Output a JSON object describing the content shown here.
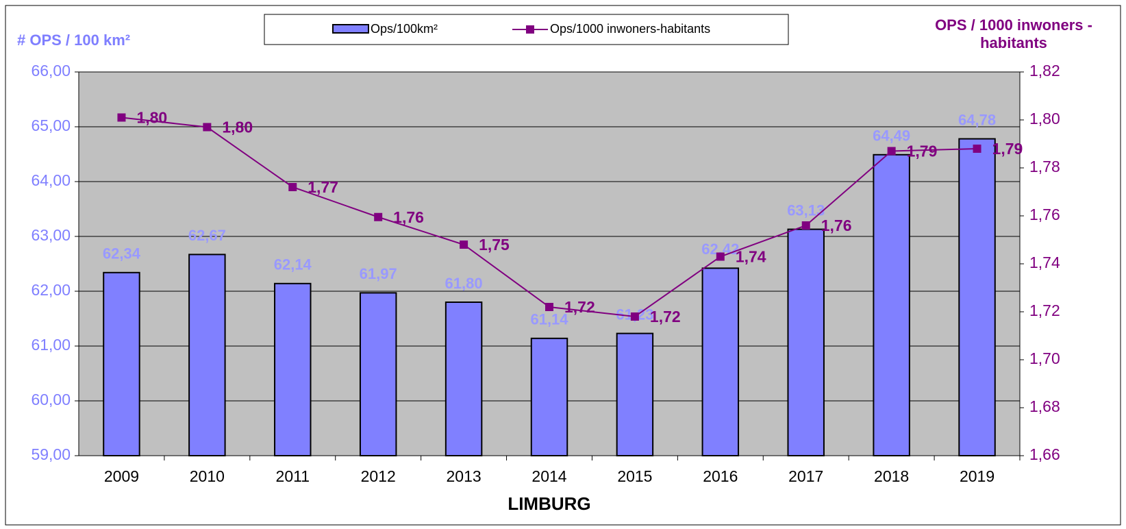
{
  "chart_data": {
    "type": "bar-line",
    "x_label": "LIMBURG",
    "y_label": "# OPS / 100 km²",
    "y2_label": "OPS / 1000 inwoners - habitants",
    "categories": [
      "2009",
      "2010",
      "2011",
      "2012",
      "2013",
      "2014",
      "2015",
      "2016",
      "2017",
      "2018",
      "2019"
    ],
    "series": [
      {
        "name": "Ops/100km²",
        "type": "bar",
        "color": "#8080ff",
        "values": [
          62.34,
          62.67,
          62.14,
          61.97,
          61.8,
          61.14,
          61.23,
          62.42,
          63.13,
          64.49,
          64.78
        ],
        "value_labels": [
          "62,34",
          "62,67",
          "62,14",
          "61,97",
          "61,80",
          "61,14",
          "61,23",
          "62,42",
          "63,13",
          "64,49",
          "64,78"
        ]
      },
      {
        "name": "Ops/1000 inwoners-habitants",
        "type": "line",
        "axis": "y2",
        "color": "#800080",
        "values": [
          1.801,
          1.797,
          1.772,
          1.7595,
          1.748,
          1.722,
          1.718,
          1.743,
          1.756,
          1.787,
          1.788
        ],
        "value_labels": [
          "1,80",
          "1,80",
          "1,77",
          "1,76",
          "1,75",
          "1,72",
          "1,72",
          "1,74",
          "1,76",
          "1,79",
          "1,79"
        ]
      }
    ],
    "ylim": [
      59,
      66
    ],
    "yticks": [
      {
        "value": 59,
        "label": "59,00"
      },
      {
        "value": 60,
        "label": "60,00"
      },
      {
        "value": 61,
        "label": "61,00"
      },
      {
        "value": 62,
        "label": "62,00"
      },
      {
        "value": 63,
        "label": "63,00"
      },
      {
        "value": 64,
        "label": "64,00"
      },
      {
        "value": 65,
        "label": "65,00"
      },
      {
        "value": 66,
        "label": "66,00"
      }
    ],
    "y2lim": [
      1.66,
      1.82
    ],
    "y2ticks": [
      {
        "value": 1.66,
        "label": "1,66"
      },
      {
        "value": 1.68,
        "label": "1,68"
      },
      {
        "value": 1.7,
        "label": "1,70"
      },
      {
        "value": 1.72,
        "label": "1,72"
      },
      {
        "value": 1.74,
        "label": "1,74"
      },
      {
        "value": 1.76,
        "label": "1,76"
      },
      {
        "value": 1.78,
        "label": "1,78"
      },
      {
        "value": 1.8,
        "label": "1,80"
      },
      {
        "value": 1.82,
        "label": "1,82"
      }
    ],
    "grid": true,
    "plot_background": "#c0c0c0",
    "legend": "top"
  }
}
